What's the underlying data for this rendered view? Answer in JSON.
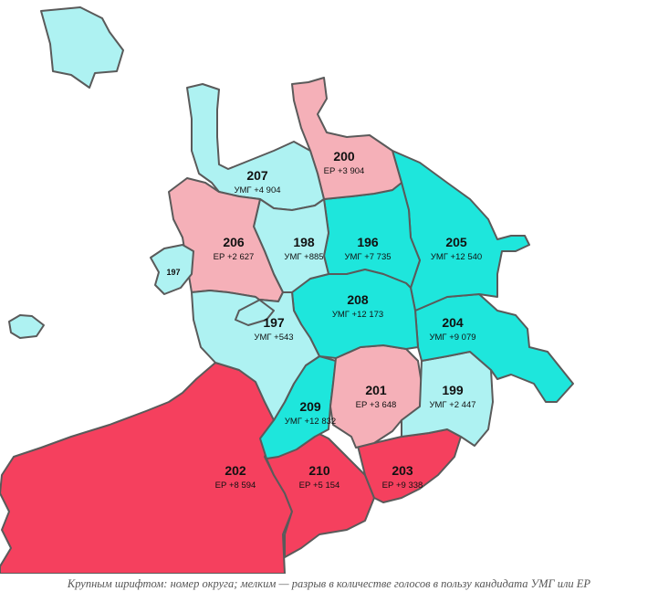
{
  "colors": {
    "umg_strong": "#1ee6dc",
    "umg_light": "#aef2f2",
    "er_light": "#f5b0b8",
    "er_strong": "#f5405e",
    "border": "#5a5a5a"
  },
  "districts": [
    {
      "number": "200",
      "margin": "ЕР +3 904"
    },
    {
      "number": "207",
      "margin": "УМГ +4 904"
    },
    {
      "number": "206",
      "margin": "ЕР +2 627"
    },
    {
      "number": "198",
      "margin": "УМГ +885"
    },
    {
      "number": "196",
      "margin": "УМГ +7 735"
    },
    {
      "number": "205",
      "margin": "УМГ +12 540"
    },
    {
      "number": "208",
      "margin": "УМГ +12 173"
    },
    {
      "number": "197",
      "margin": "УМГ +543"
    },
    {
      "number": "204",
      "margin": "УМГ +9 079"
    },
    {
      "number": "201",
      "margin": "ЕР +3 648"
    },
    {
      "number": "199",
      "margin": "УМГ +2 447"
    },
    {
      "number": "209",
      "margin": "УМГ +12 832"
    },
    {
      "number": "202",
      "margin": "ЕР +8 594"
    },
    {
      "number": "210",
      "margin": "ЕР +5 154"
    },
    {
      "number": "203",
      "margin": "ЕР +9 338"
    }
  ],
  "exclave_label": "197",
  "caption": "Крупным шрифтом: номер округа; мелким — разрыв в количестве голосов в пользу кандидата УМГ или ЕР"
}
